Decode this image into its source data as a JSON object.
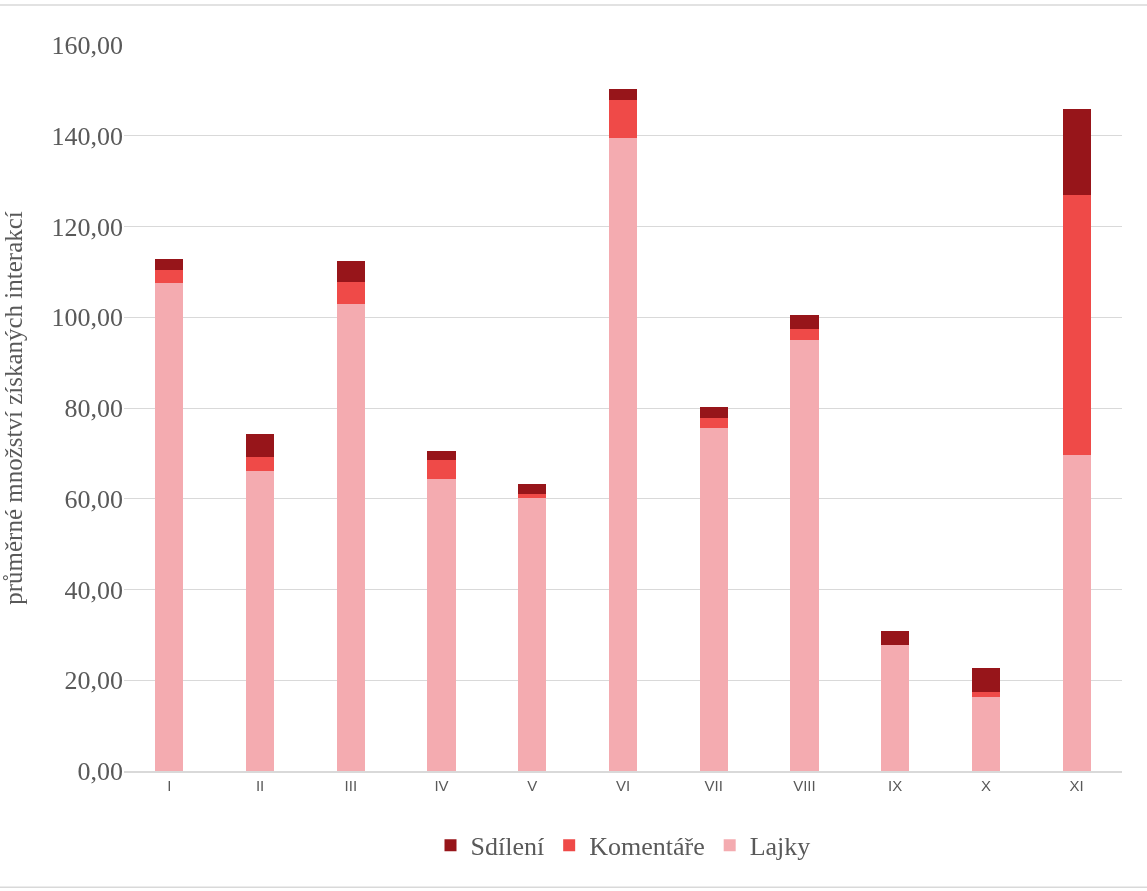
{
  "chart_data": {
    "type": "bar",
    "stacked": true,
    "ylabel": "průměrné množství získaných interakcí",
    "categories": [
      "I",
      "II",
      "III",
      "IV",
      "V",
      "VI",
      "VII",
      "VIII",
      "IX",
      "X",
      "XI"
    ],
    "series": [
      {
        "name": "Lajky",
        "color": "#f4abb0",
        "values": [
          107.6,
          66.2,
          103.0,
          64.3,
          60.2,
          139.6,
          75.5,
          95.0,
          27.8,
          16.3,
          69.6
        ]
      },
      {
        "name": "Komentáře",
        "color": "#ef4a48",
        "values": [
          2.8,
          3.1,
          4.8,
          4.3,
          0.9,
          8.2,
          2.2,
          2.4,
          0,
          1.1,
          57.4
        ]
      },
      {
        "name": "Sdílení",
        "color": "#97151a",
        "values": [
          2.5,
          4.9,
          4.5,
          1.9,
          2.2,
          2.5,
          2.6,
          3.1,
          3.0,
          5.3,
          18.8
        ]
      }
    ],
    "ylim": [
      0,
      160
    ],
    "yticks": [
      {
        "value": 0,
        "label": "0,00"
      },
      {
        "value": 20,
        "label": "20,00"
      },
      {
        "value": 40,
        "label": "40,00"
      },
      {
        "value": 60,
        "label": "60,00"
      },
      {
        "value": 80,
        "label": "80,00"
      },
      {
        "value": 100,
        "label": "100,00"
      },
      {
        "value": 120,
        "label": "120,00"
      },
      {
        "value": 140,
        "label": "140,00"
      },
      {
        "value": 160,
        "label": "160,00"
      }
    ],
    "grid": "y",
    "legend": "bottom"
  }
}
